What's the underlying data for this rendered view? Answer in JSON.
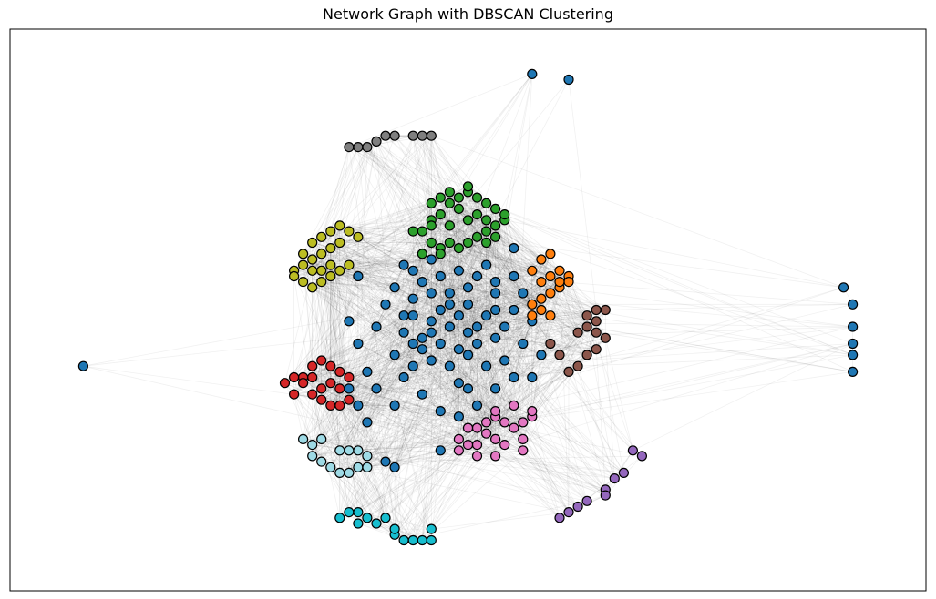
{
  "chart_data": {
    "type": "scatter",
    "title": "Network Graph with DBSCAN Clustering",
    "xlabel": "",
    "ylabel": "",
    "axes_visible": false,
    "grid": false,
    "legend": "none",
    "xlim": [
      0,
      1
    ],
    "ylim": [
      0,
      1
    ],
    "edge_color": "#000000",
    "node_edge_color": "#000000",
    "clusters": [
      {
        "label": "0",
        "color": "#1f77b4",
        "points": [
          [
            0.5,
            0.36
          ],
          [
            0.57,
            0.92
          ],
          [
            0.61,
            0.91
          ],
          [
            0.08,
            0.4
          ],
          [
            0.91,
            0.54
          ],
          [
            0.92,
            0.51
          ],
          [
            0.92,
            0.47
          ],
          [
            0.92,
            0.44
          ],
          [
            0.92,
            0.42
          ],
          [
            0.92,
            0.39
          ],
          [
            0.45,
            0.45
          ],
          [
            0.46,
            0.48
          ],
          [
            0.48,
            0.47
          ],
          [
            0.47,
            0.5
          ],
          [
            0.49,
            0.49
          ],
          [
            0.5,
            0.51
          ],
          [
            0.44,
            0.52
          ],
          [
            0.43,
            0.49
          ],
          [
            0.46,
            0.53
          ],
          [
            0.51,
            0.47
          ],
          [
            0.52,
            0.49
          ],
          [
            0.53,
            0.53
          ],
          [
            0.48,
            0.53
          ],
          [
            0.45,
            0.55
          ],
          [
            0.42,
            0.54
          ],
          [
            0.44,
            0.49
          ],
          [
            0.43,
            0.46
          ],
          [
            0.47,
            0.44
          ],
          [
            0.49,
            0.43
          ],
          [
            0.51,
            0.44
          ],
          [
            0.53,
            0.45
          ],
          [
            0.54,
            0.47
          ],
          [
            0.55,
            0.5
          ],
          [
            0.53,
            0.55
          ],
          [
            0.5,
            0.54
          ],
          [
            0.47,
            0.56
          ],
          [
            0.44,
            0.57
          ],
          [
            0.41,
            0.51
          ],
          [
            0.4,
            0.47
          ],
          [
            0.42,
            0.42
          ],
          [
            0.44,
            0.4
          ],
          [
            0.46,
            0.41
          ],
          [
            0.48,
            0.4
          ],
          [
            0.5,
            0.42
          ],
          [
            0.52,
            0.4
          ],
          [
            0.54,
            0.41
          ],
          [
            0.56,
            0.44
          ],
          [
            0.57,
            0.48
          ],
          [
            0.56,
            0.53
          ],
          [
            0.55,
            0.56
          ],
          [
            0.52,
            0.58
          ],
          [
            0.49,
            0.57
          ],
          [
            0.46,
            0.59
          ],
          [
            0.43,
            0.58
          ],
          [
            0.38,
            0.56
          ],
          [
            0.37,
            0.48
          ],
          [
            0.38,
            0.44
          ],
          [
            0.39,
            0.39
          ],
          [
            0.4,
            0.36
          ],
          [
            0.42,
            0.33
          ],
          [
            0.45,
            0.35
          ],
          [
            0.47,
            0.32
          ],
          [
            0.49,
            0.31
          ],
          [
            0.51,
            0.33
          ],
          [
            0.53,
            0.36
          ],
          [
            0.55,
            0.38
          ],
          [
            0.58,
            0.42
          ],
          [
            0.55,
            0.61
          ],
          [
            0.38,
            0.33
          ],
          [
            0.41,
            0.23
          ],
          [
            0.42,
            0.22
          ],
          [
            0.47,
            0.25
          ],
          [
            0.39,
            0.3
          ],
          [
            0.37,
            0.36
          ],
          [
            0.57,
            0.38
          ],
          [
            0.49,
            0.37
          ],
          [
            0.43,
            0.38
          ],
          [
            0.45,
            0.43
          ],
          [
            0.48,
            0.51
          ],
          [
            0.51,
            0.56
          ],
          [
            0.46,
            0.46
          ],
          [
            0.5,
            0.46
          ],
          [
            0.53,
            0.5
          ],
          [
            0.44,
            0.44
          ]
        ]
      },
      {
        "label": "1",
        "color": "#ff7f0e",
        "points": [
          [
            0.58,
            0.59
          ],
          [
            0.59,
            0.6
          ],
          [
            0.57,
            0.57
          ],
          [
            0.58,
            0.55
          ],
          [
            0.59,
            0.56
          ],
          [
            0.6,
            0.57
          ],
          [
            0.61,
            0.56
          ],
          [
            0.61,
            0.55
          ],
          [
            0.6,
            0.54
          ],
          [
            0.59,
            0.53
          ],
          [
            0.57,
            0.51
          ],
          [
            0.58,
            0.5
          ],
          [
            0.59,
            0.49
          ],
          [
            0.57,
            0.49
          ],
          [
            0.58,
            0.52
          ],
          [
            0.6,
            0.55
          ]
        ]
      },
      {
        "label": "2",
        "color": "#2ca02c",
        "points": [
          [
            0.46,
            0.66
          ],
          [
            0.47,
            0.67
          ],
          [
            0.48,
            0.69
          ],
          [
            0.49,
            0.7
          ],
          [
            0.5,
            0.71
          ],
          [
            0.51,
            0.7
          ],
          [
            0.52,
            0.69
          ],
          [
            0.53,
            0.68
          ],
          [
            0.54,
            0.66
          ],
          [
            0.53,
            0.65
          ],
          [
            0.52,
            0.64
          ],
          [
            0.51,
            0.63
          ],
          [
            0.5,
            0.62
          ],
          [
            0.48,
            0.62
          ],
          [
            0.47,
            0.61
          ],
          [
            0.46,
            0.62
          ],
          [
            0.45,
            0.64
          ],
          [
            0.46,
            0.65
          ],
          [
            0.48,
            0.65
          ],
          [
            0.5,
            0.66
          ],
          [
            0.52,
            0.66
          ],
          [
            0.49,
            0.68
          ],
          [
            0.47,
            0.7
          ],
          [
            0.46,
            0.69
          ],
          [
            0.51,
            0.67
          ],
          [
            0.53,
            0.63
          ],
          [
            0.44,
            0.64
          ],
          [
            0.45,
            0.6
          ],
          [
            0.47,
            0.6
          ],
          [
            0.49,
            0.61
          ],
          [
            0.52,
            0.62
          ],
          [
            0.54,
            0.67
          ],
          [
            0.5,
            0.72
          ],
          [
            0.48,
            0.71
          ]
        ]
      },
      {
        "label": "3",
        "color": "#d62728",
        "points": [
          [
            0.31,
            0.35
          ],
          [
            0.32,
            0.38
          ],
          [
            0.33,
            0.4
          ],
          [
            0.34,
            0.41
          ],
          [
            0.35,
            0.4
          ],
          [
            0.36,
            0.39
          ],
          [
            0.37,
            0.38
          ],
          [
            0.36,
            0.36
          ],
          [
            0.37,
            0.34
          ],
          [
            0.36,
            0.33
          ],
          [
            0.34,
            0.34
          ],
          [
            0.33,
            0.35
          ],
          [
            0.32,
            0.37
          ],
          [
            0.31,
            0.38
          ],
          [
            0.3,
            0.37
          ],
          [
            0.33,
            0.38
          ],
          [
            0.35,
            0.37
          ],
          [
            0.34,
            0.36
          ],
          [
            0.35,
            0.33
          ]
        ]
      },
      {
        "label": "4",
        "color": "#9467bd",
        "points": [
          [
            0.68,
            0.25
          ],
          [
            0.69,
            0.24
          ],
          [
            0.67,
            0.21
          ],
          [
            0.66,
            0.2
          ],
          [
            0.65,
            0.18
          ],
          [
            0.65,
            0.17
          ],
          [
            0.63,
            0.16
          ],
          [
            0.62,
            0.15
          ],
          [
            0.61,
            0.14
          ],
          [
            0.6,
            0.13
          ]
        ]
      },
      {
        "label": "5",
        "color": "#8c564b",
        "points": [
          [
            0.63,
            0.49
          ],
          [
            0.64,
            0.5
          ],
          [
            0.65,
            0.5
          ],
          [
            0.64,
            0.48
          ],
          [
            0.63,
            0.47
          ],
          [
            0.62,
            0.46
          ],
          [
            0.64,
            0.46
          ],
          [
            0.65,
            0.45
          ],
          [
            0.64,
            0.43
          ],
          [
            0.63,
            0.42
          ],
          [
            0.62,
            0.4
          ],
          [
            0.61,
            0.39
          ],
          [
            0.6,
            0.42
          ],
          [
            0.59,
            0.44
          ]
        ]
      },
      {
        "label": "6",
        "color": "#e377c2",
        "points": [
          [
            0.51,
            0.29
          ],
          [
            0.52,
            0.3
          ],
          [
            0.53,
            0.31
          ],
          [
            0.54,
            0.3
          ],
          [
            0.55,
            0.29
          ],
          [
            0.56,
            0.3
          ],
          [
            0.57,
            0.31
          ],
          [
            0.56,
            0.27
          ],
          [
            0.54,
            0.26
          ],
          [
            0.53,
            0.27
          ],
          [
            0.51,
            0.26
          ],
          [
            0.5,
            0.26
          ],
          [
            0.49,
            0.27
          ],
          [
            0.5,
            0.29
          ],
          [
            0.52,
            0.28
          ],
          [
            0.53,
            0.32
          ],
          [
            0.55,
            0.33
          ],
          [
            0.57,
            0.32
          ],
          [
            0.56,
            0.25
          ],
          [
            0.53,
            0.24
          ],
          [
            0.51,
            0.24
          ],
          [
            0.49,
            0.25
          ]
        ]
      },
      {
        "label": "7",
        "color": "#7f7f7f",
        "points": [
          [
            0.37,
            0.79
          ],
          [
            0.38,
            0.79
          ],
          [
            0.39,
            0.79
          ],
          [
            0.4,
            0.8
          ],
          [
            0.41,
            0.81
          ],
          [
            0.42,
            0.81
          ],
          [
            0.44,
            0.81
          ],
          [
            0.45,
            0.81
          ],
          [
            0.46,
            0.81
          ]
        ]
      },
      {
        "label": "8",
        "color": "#bcbd22",
        "points": [
          [
            0.33,
            0.62
          ],
          [
            0.34,
            0.63
          ],
          [
            0.35,
            0.64
          ],
          [
            0.36,
            0.65
          ],
          [
            0.37,
            0.64
          ],
          [
            0.38,
            0.63
          ],
          [
            0.36,
            0.62
          ],
          [
            0.35,
            0.61
          ],
          [
            0.34,
            0.6
          ],
          [
            0.33,
            0.59
          ],
          [
            0.32,
            0.58
          ],
          [
            0.31,
            0.57
          ],
          [
            0.31,
            0.56
          ],
          [
            0.32,
            0.55
          ],
          [
            0.33,
            0.54
          ],
          [
            0.34,
            0.55
          ],
          [
            0.35,
            0.56
          ],
          [
            0.36,
            0.57
          ],
          [
            0.37,
            0.58
          ],
          [
            0.35,
            0.58
          ],
          [
            0.34,
            0.57
          ],
          [
            0.33,
            0.57
          ],
          [
            0.32,
            0.6
          ]
        ]
      },
      {
        "label": "9",
        "color": "#17becf",
        "points": [
          [
            0.36,
            0.13
          ],
          [
            0.37,
            0.14
          ],
          [
            0.38,
            0.14
          ],
          [
            0.38,
            0.12
          ],
          [
            0.39,
            0.13
          ],
          [
            0.4,
            0.12
          ],
          [
            0.41,
            0.13
          ],
          [
            0.42,
            0.1
          ],
          [
            0.43,
            0.09
          ],
          [
            0.44,
            0.09
          ],
          [
            0.45,
            0.09
          ],
          [
            0.46,
            0.09
          ],
          [
            0.46,
            0.11
          ],
          [
            0.42,
            0.11
          ]
        ]
      },
      {
        "label": "10",
        "color": "#9edae5",
        "points": [
          [
            0.32,
            0.27
          ],
          [
            0.33,
            0.26
          ],
          [
            0.34,
            0.27
          ],
          [
            0.33,
            0.24
          ],
          [
            0.34,
            0.23
          ],
          [
            0.35,
            0.22
          ],
          [
            0.36,
            0.21
          ],
          [
            0.37,
            0.21
          ],
          [
            0.38,
            0.22
          ],
          [
            0.39,
            0.22
          ],
          [
            0.39,
            0.24
          ],
          [
            0.38,
            0.25
          ],
          [
            0.37,
            0.25
          ],
          [
            0.36,
            0.25
          ]
        ]
      }
    ]
  }
}
